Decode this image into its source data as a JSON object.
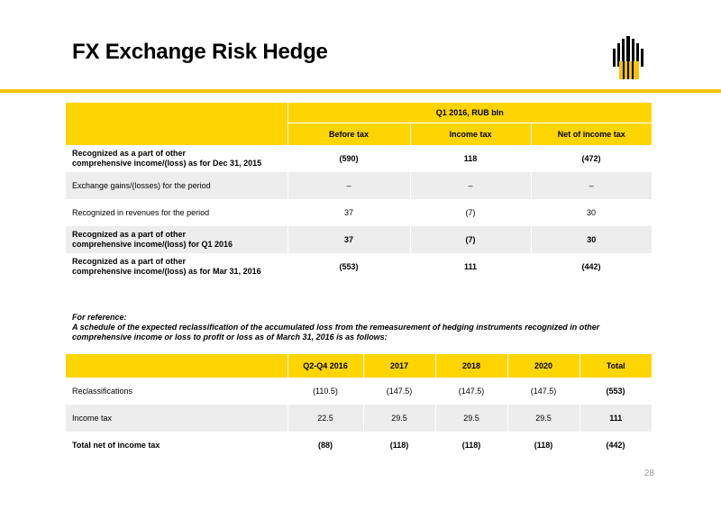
{
  "title": "FX Exchange Risk Hedge",
  "colors": {
    "accent": "#FFD500",
    "row_shade": "#EDEDED"
  },
  "logo": {
    "icon": "rosneft-logo-icon"
  },
  "table1": {
    "group_header": "Q1 2016, RUB bln",
    "columns": [
      "Before tax",
      "Income tax",
      "Net of income tax"
    ],
    "rows": [
      {
        "label_line1": "Recognized as a part of other",
        "label_line2": "comprehensive income/(loss) as for Dec 31, 2015",
        "values": [
          "(590)",
          "118",
          "(472)"
        ]
      },
      {
        "label_line1": "Exchange gains/(losses) for the period",
        "label_line2": "",
        "values": [
          "–",
          "–",
          "–"
        ]
      },
      {
        "label_line1": "Recognized in revenues for the period",
        "label_line2": "",
        "values": [
          "37",
          "(7)",
          "30"
        ]
      },
      {
        "label_line1": "Recognized as a part of other",
        "label_line2": "comprehensive income/(loss) for Q1 2016",
        "values": [
          "37",
          "(7)",
          "30"
        ]
      },
      {
        "label_line1": "Recognized as a part of other",
        "label_line2": "comprehensive income/(loss) as for Mar 31, 2016",
        "values": [
          "(553)",
          "111",
          "(442)"
        ]
      }
    ]
  },
  "reference": {
    "line1": "For reference:",
    "line2": "A schedule of the expected reclassification of the accumulated loss from the remeasurement of hedging instruments recognized in other",
    "line3": "comprehensive income or loss to profit or loss as of March 31, 2016 is as follows:"
  },
  "table2": {
    "columns": [
      "Q2-Q4 2016",
      "2017",
      "2018",
      "2020",
      "Total"
    ],
    "rows": [
      {
        "label": "Reclassifications",
        "values": [
          "(110.5)",
          "(147.5)",
          "(147.5)",
          "(147.5)",
          "(553)"
        ]
      },
      {
        "label": "Income tax",
        "values": [
          "22.5",
          "29.5",
          "29.5",
          "29.5",
          "111"
        ]
      },
      {
        "label": "Total net of income tax",
        "values": [
          "(88)",
          "(118)",
          "(118)",
          "(118)",
          "(442)"
        ]
      }
    ]
  },
  "page_number": "28"
}
